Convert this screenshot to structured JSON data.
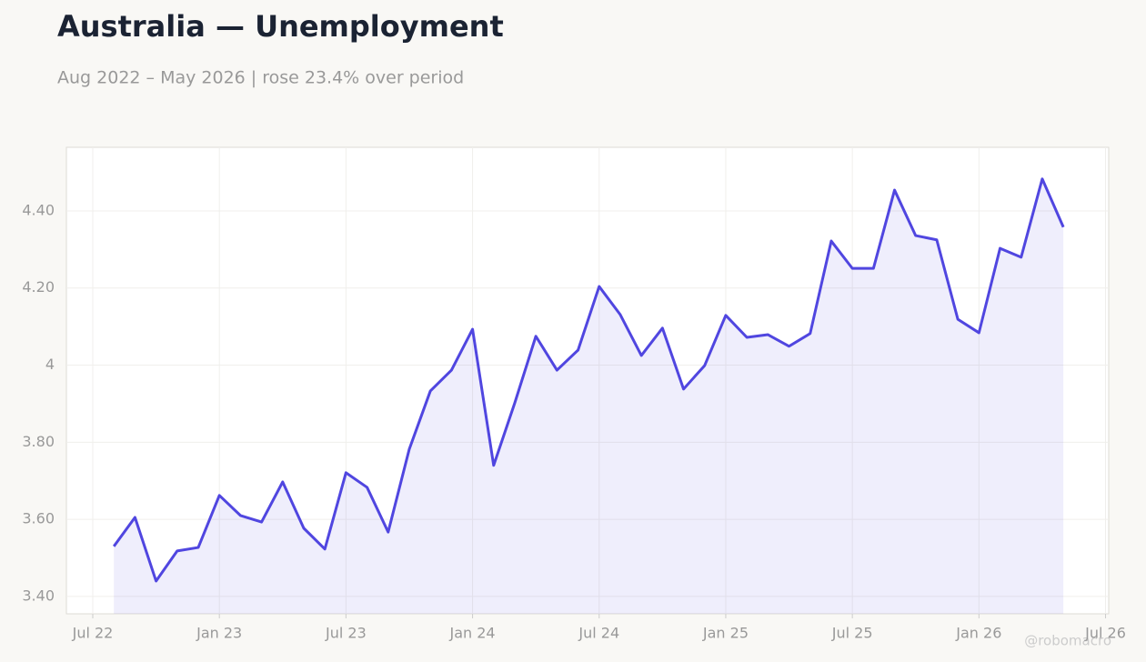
{
  "chart_data": {
    "type": "line",
    "title": "Australia — Unemployment",
    "subtitle": "Aug 2022 – May 2026 | rose 23.4% over period",
    "watermark": "@robomacro",
    "x": [
      "2022-08",
      "2022-09",
      "2022-10",
      "2022-11",
      "2022-12",
      "2023-01",
      "2023-02",
      "2023-03",
      "2023-04",
      "2023-05",
      "2023-06",
      "2023-07",
      "2023-08",
      "2023-09",
      "2023-10",
      "2023-11",
      "2023-12",
      "2024-01",
      "2024-02",
      "2024-03",
      "2024-04",
      "2024-05",
      "2024-06",
      "2024-07",
      "2024-08",
      "2024-09",
      "2024-10",
      "2024-11",
      "2024-12",
      "2025-01",
      "2025-02",
      "2025-03",
      "2025-04",
      "2025-05",
      "2025-06",
      "2025-07",
      "2025-08",
      "2025-09",
      "2025-10",
      "2025-11",
      "2025-12",
      "2026-01",
      "2026-02",
      "2026-03",
      "2026-04",
      "2026-05"
    ],
    "series": [
      {
        "name": "Unemployment",
        "color": "#5046e0",
        "values": [
          3.53,
          3.605,
          3.44,
          3.518,
          3.527,
          3.662,
          3.61,
          3.593,
          3.697,
          3.577,
          3.523,
          3.721,
          3.683,
          3.567,
          3.782,
          3.933,
          3.987,
          4.093,
          3.74,
          3.902,
          4.075,
          3.987,
          4.039,
          4.204,
          4.131,
          4.025,
          4.096,
          3.938,
          3.999,
          4.129,
          4.072,
          4.079,
          4.049,
          4.082,
          4.322,
          4.251,
          4.251,
          4.454,
          4.336,
          4.325,
          4.119,
          4.084,
          4.303,
          4.28,
          4.483,
          4.358
        ]
      }
    ],
    "xticks": [
      {
        "value": "2022-07",
        "label": "Jul 22"
      },
      {
        "value": "2023-01",
        "label": "Jan 23"
      },
      {
        "value": "2023-07",
        "label": "Jul 23"
      },
      {
        "value": "2024-01",
        "label": "Jan 24"
      },
      {
        "value": "2024-07",
        "label": "Jul 24"
      },
      {
        "value": "2025-01",
        "label": "Jan 25"
      },
      {
        "value": "2025-07",
        "label": "Jul 25"
      },
      {
        "value": "2026-01",
        "label": "Jan 26"
      },
      {
        "value": "2026-07",
        "label": "Jul 26"
      }
    ],
    "ylim": [
      3.355,
      4.565
    ],
    "yticks": [
      {
        "value": 3.4,
        "label": "3.40"
      },
      {
        "value": 3.6,
        "label": "3.60"
      },
      {
        "value": 3.8,
        "label": "3.80"
      },
      4,
      {
        "value": 4.2,
        "label": "4.20"
      },
      {
        "value": 4.4,
        "label": "4.40"
      }
    ],
    "grid": true
  }
}
